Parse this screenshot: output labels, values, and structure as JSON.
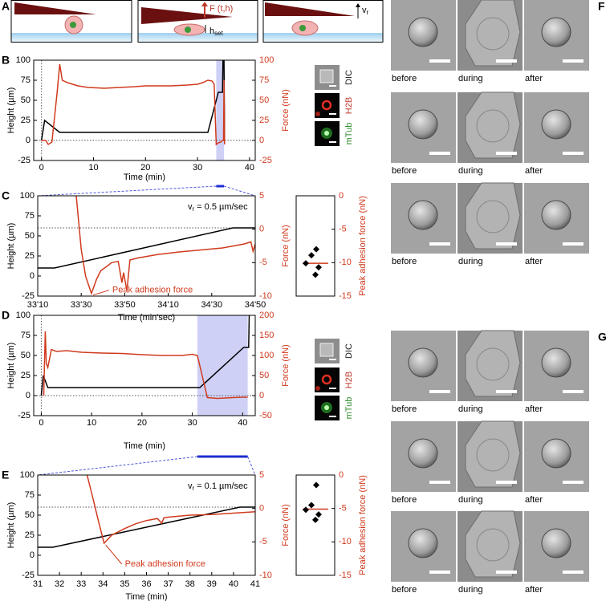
{
  "panel_labels": [
    "A",
    "B",
    "C",
    "D",
    "E",
    "F",
    "G"
  ],
  "schematic": {
    "force_label": "F (t,h)",
    "h": "h",
    "h_sub": "set",
    "v": "v",
    "v_sub": "r"
  },
  "micrographs": {
    "B": [
      "DIC",
      "H2B",
      "mTub"
    ],
    "D": [
      "DIC",
      "H2B",
      "mTub"
    ]
  },
  "image_grids": {
    "F": [
      [
        "before",
        "during",
        "after"
      ],
      [
        "before",
        "during",
        "after"
      ],
      [
        "before",
        "during",
        "after"
      ]
    ],
    "G": [
      [
        "before",
        "during",
        "after"
      ],
      [
        "before",
        "during",
        "after"
      ],
      [
        "before",
        "during",
        "after"
      ]
    ]
  },
  "chart_data": [
    {
      "type": "line",
      "xlabel": "Time (min)",
      "ylabel": "Height (µm)",
      "y2label": "Force (nN)",
      "y2_color": "#d03a1e",
      "xlim": [
        -1.5,
        41.1
      ],
      "xticks": [
        0,
        10,
        20,
        30,
        40
      ],
      "ylim": [
        -25,
        100
      ],
      "yticks": [
        -25,
        0,
        25,
        50,
        75,
        100
      ],
      "y2lim": [
        -25,
        100
      ],
      "y2ticks": [
        -25,
        0,
        25,
        50,
        75,
        100
      ],
      "shaded_x": [
        33.6,
        35.1
      ],
      "reference_lines": {
        "x": [
          0
        ],
        "y": [
          0
        ]
      },
      "series": [
        {
          "color": "#000000",
          "axis": "y",
          "x": [
            0,
            0.6,
            3.5,
            32,
            34.0,
            34.8,
            34.9,
            35.1,
            35.2
          ],
          "values": [
            0,
            25,
            10,
            10,
            60,
            60,
            100,
            100,
            0
          ]
        },
        {
          "color": "#d03a1e",
          "axis": "y2",
          "x": [
            0,
            0.8,
            1.3,
            2.0,
            3.0,
            3.5,
            4.0,
            5,
            7,
            9,
            12,
            15,
            18,
            20,
            22,
            25,
            28,
            30,
            31,
            32,
            32.8,
            33.2,
            33.6,
            34.0,
            34.5,
            34.8,
            35.0,
            35.1,
            35.2
          ],
          "values": [
            0,
            0,
            -5,
            -2,
            60,
            95,
            75,
            72,
            68,
            66,
            65,
            66,
            67,
            68,
            68,
            68,
            69,
            70,
            72,
            75,
            74,
            70,
            -5,
            -3,
            -2,
            0,
            0,
            75,
            -5
          ]
        }
      ]
    },
    {
      "type": "line",
      "xlabel": "Time (min'sec)",
      "ylabel": "Height (µm)",
      "y2label": "Force (nN)",
      "y2_color": "#d03a1e",
      "xlim": [
        1990,
        2090
      ],
      "xticks": [
        {
          "value": 1990,
          "label": "33'10"
        },
        {
          "value": 2010,
          "label": "33'30"
        },
        {
          "value": 2030,
          "label": "33'50"
        },
        {
          "value": 2050,
          "label": "34'10"
        },
        {
          "value": 2070,
          "label": "34'30"
        },
        {
          "value": 2090,
          "label": "34'50"
        }
      ],
      "ylim": [
        -25,
        100
      ],
      "yticks": [
        -25,
        0,
        25,
        50,
        75,
        100
      ],
      "y2lim": [
        -10,
        5
      ],
      "y2ticks": [
        -10,
        -5,
        0,
        5
      ],
      "reference_lines": {
        "y": [
          60
        ]
      },
      "speed_label": {
        "symbol": "v",
        "subscript": "r",
        "text": "= 0.5 µm/sec"
      },
      "peak_label": "Peak adhesion force",
      "series": [
        {
          "color": "#000000",
          "axis": "y",
          "x": [
            1990,
            1997.7,
            2079.7,
            2090
          ],
          "values": [
            10,
            10,
            60,
            60
          ]
        },
        {
          "color": "#d03a1e",
          "axis": "y2",
          "x": [
            2007.7,
            2010,
            2012,
            2014.7,
            2017,
            2019,
            2022,
            2024,
            2027,
            2028.7,
            2029.5,
            2031,
            2032.4,
            2036,
            2045,
            2055,
            2065,
            2075,
            2085,
            2088,
            2089,
            2090
          ],
          "values": [
            5,
            -3,
            -7,
            -9.6,
            -7.5,
            -6.2,
            -5.5,
            -5,
            -4.8,
            -8,
            -6.5,
            -9.2,
            -4.6,
            -4.3,
            -3.8,
            -3.4,
            -3.1,
            -2.8,
            -2.2,
            -1.9,
            -3.3,
            -2.2
          ]
        }
      ]
    },
    {
      "type": "strip",
      "ylabel": "Peak adhesion force (nN)",
      "axis_color": "#d03a1e",
      "color": "#000000",
      "line_color": "#d03a1e",
      "ylim": [
        -15,
        0
      ],
      "yticks": [
        -15,
        -10,
        -5,
        0
      ],
      "values": [
        -8.0,
        -8.9,
        -10.1,
        -10.7,
        -11.8
      ],
      "line_value": -10.1
    },
    {
      "type": "line",
      "xlabel": "Time (min)",
      "ylabel": "Height (µm)",
      "y2label": "Force (nN)",
      "y2_color": "#d03a1e",
      "xlim": [
        -1.5,
        42.5
      ],
      "xticks": [
        0,
        10,
        20,
        30,
        40
      ],
      "ylim": [
        -25,
        100
      ],
      "yticks": [
        -25,
        0,
        25,
        50,
        75,
        100
      ],
      "y2lim": [
        -50,
        200
      ],
      "y2ticks": [
        -50,
        0,
        50,
        100,
        150,
        200
      ],
      "shaded_x": [
        31,
        41
      ],
      "reference_lines": {
        "x": [
          0
        ],
        "y": [
          0
        ]
      },
      "series": [
        {
          "color": "#000000",
          "axis": "y",
          "x": [
            0,
            0.4,
            1.3,
            31.5,
            40.2,
            41.2,
            41.3
          ],
          "values": [
            0,
            25,
            10,
            10,
            60,
            60,
            100
          ]
        },
        {
          "color": "#d03a1e",
          "axis": "y2",
          "x": [
            0.5,
            0.8,
            1.0,
            1.3,
            2,
            3,
            5,
            8,
            12,
            16,
            20,
            24,
            28,
            30,
            31,
            32,
            33,
            35,
            38,
            40,
            41
          ],
          "values": [
            0,
            160,
            80,
            70,
            115,
            110,
            112,
            108,
            106,
            105,
            102,
            100,
            100,
            103,
            100,
            48,
            -5,
            -7,
            -5,
            -4,
            -4
          ]
        }
      ]
    },
    {
      "type": "line",
      "xlabel": "Time (min)",
      "ylabel": "Height (µm)",
      "y2label": "Force (nN)",
      "y2_color": "#d03a1e",
      "xlim": [
        31,
        41
      ],
      "xticks": [
        31,
        32,
        33,
        34,
        35,
        36,
        37,
        38,
        39,
        40,
        41
      ],
      "ylim": [
        -25,
        100
      ],
      "yticks": [
        -25,
        0,
        25,
        50,
        75,
        100
      ],
      "y2lim": [
        -10,
        5
      ],
      "y2ticks": [
        -10,
        -5,
        0,
        5
      ],
      "reference_lines": {
        "y": [
          60
        ]
      },
      "speed_label": {
        "symbol": "v",
        "subscript": "r",
        "text": "= 0.1 µm/sec"
      },
      "peak_label": "Peak adhesion force",
      "series": [
        {
          "color": "#000000",
          "axis": "y",
          "x": [
            31,
            31.7,
            40.3,
            41
          ],
          "values": [
            10,
            10,
            60,
            60
          ]
        },
        {
          "color": "#d03a1e",
          "axis": "y2",
          "x": [
            33.27,
            33.5,
            33.8,
            34.05,
            34.4,
            35,
            35.5,
            36,
            36.5,
            36.7,
            36.8,
            37,
            38,
            39,
            40,
            41
          ],
          "values": [
            5,
            2,
            -2,
            -5.2,
            -4,
            -3,
            -2.3,
            -1.8,
            -1.5,
            -2.2,
            -1.4,
            -1.3,
            -1,
            -0.9,
            -0.7,
            -0.5
          ]
        }
      ]
    },
    {
      "type": "strip",
      "ylabel": "Peak adhesion force (nN)",
      "axis_color": "#d03a1e",
      "color": "#000000",
      "line_color": "#d03a1e",
      "ylim": [
        -15,
        0
      ],
      "yticks": [
        -15,
        -10,
        -5,
        0
      ],
      "values": [
        -1.5,
        -4.5,
        -5.2,
        -5.9,
        -6.7
      ],
      "line_value": -5.1
    }
  ]
}
